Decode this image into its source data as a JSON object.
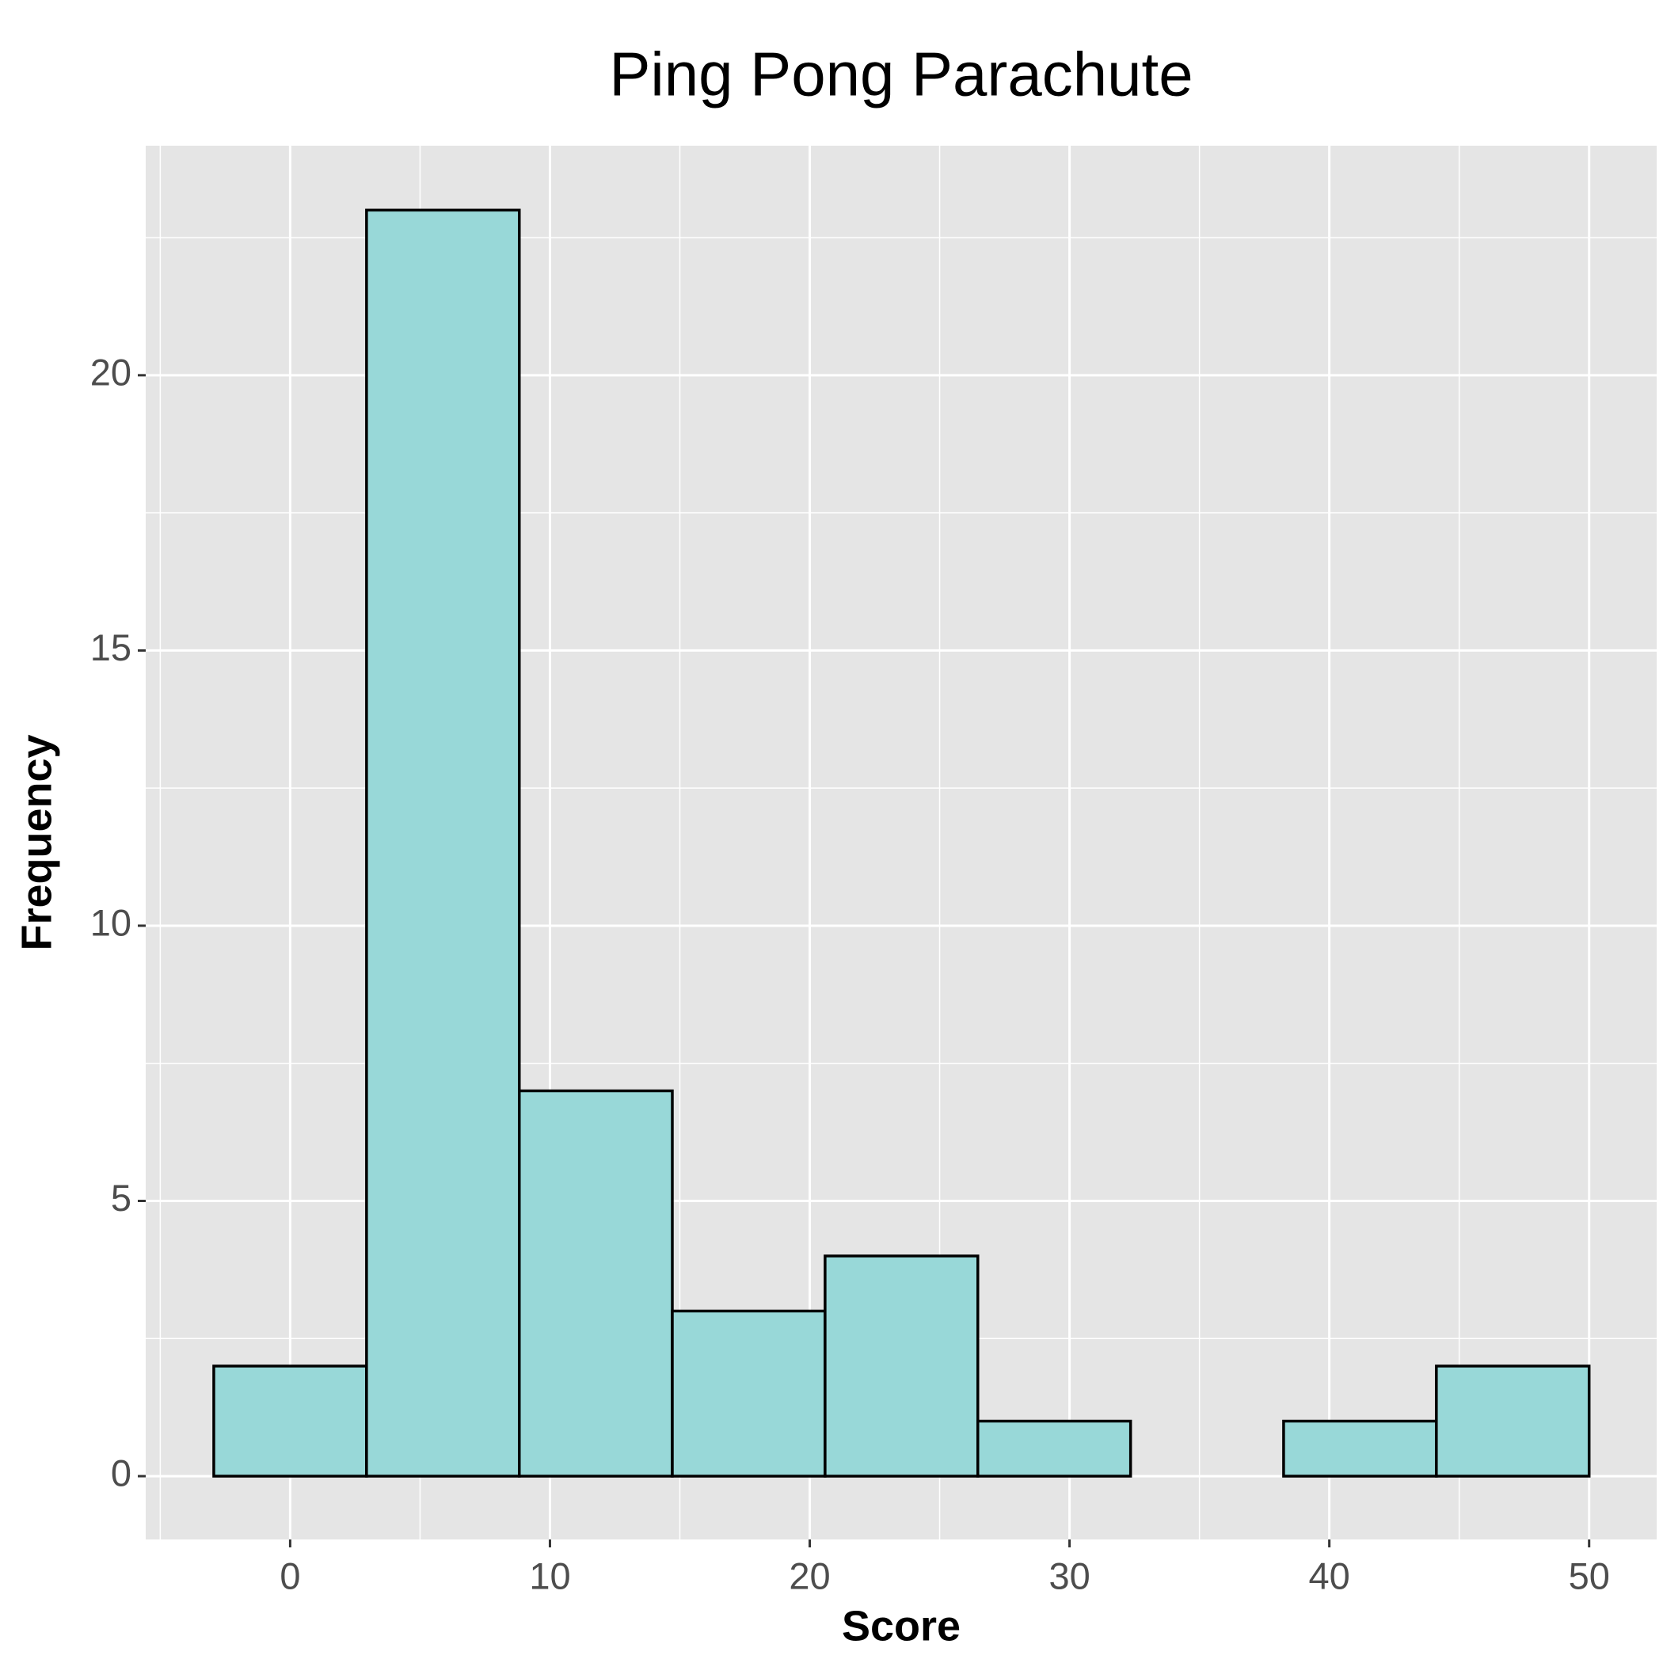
{
  "chart_data": {
    "type": "histogram",
    "title": "Ping Pong Parachute",
    "x_label": "Score",
    "y_label": "Frequency",
    "bins": [
      -2.94,
      2.94,
      8.82,
      14.71,
      20.59,
      26.47,
      32.35,
      38.24,
      44.12,
      50
    ],
    "values": [
      2,
      23,
      7,
      3,
      4,
      1,
      0,
      1,
      2
    ],
    "color": "#98d8d8",
    "edge_color": "#000000",
    "xlim": [
      -5.56,
      52.6
    ],
    "xticks": [
      0,
      10,
      20,
      30,
      40,
      50
    ],
    "ylim": [
      -1.15,
      24.17
    ],
    "yticks": [
      0,
      5,
      10,
      15,
      20
    ],
    "grid": true
  }
}
